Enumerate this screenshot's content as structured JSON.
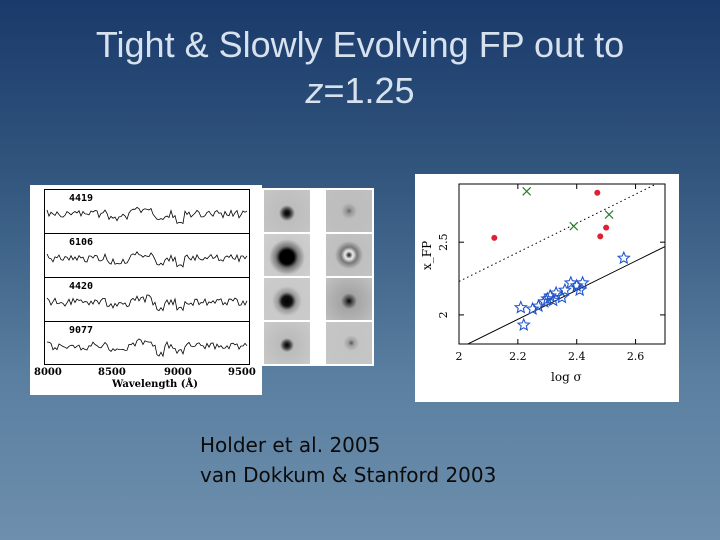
{
  "title": {
    "line1": "Tight & Slowly Evolving FP out to",
    "line2_var": "z",
    "line2_rest": "=1.25"
  },
  "spectra": {
    "ids": [
      "4419",
      "6106",
      "4420",
      "9077"
    ],
    "x_ticks": [
      "8000",
      "8500",
      "9000",
      "9500"
    ],
    "xlabel": "Wavelength (Å)"
  },
  "chart_data": {
    "type": "scatter",
    "title": "",
    "xlabel": "log σ",
    "ylabel": "x_FP",
    "xlim": [
      2.0,
      2.7
    ],
    "ylim": [
      1.8,
      2.9
    ],
    "x_ticks": [
      "2",
      "2.2",
      "2.4",
      "2.6"
    ],
    "y_ticks": [
      "2",
      "2.5"
    ],
    "series": [
      {
        "marker": "star",
        "color": "#2255cc",
        "points": [
          [
            2.22,
            1.93
          ],
          [
            2.21,
            2.05
          ],
          [
            2.25,
            2.04
          ],
          [
            2.27,
            2.06
          ],
          [
            2.29,
            2.09
          ],
          [
            2.3,
            2.11
          ],
          [
            2.31,
            2.13
          ],
          [
            2.32,
            2.1
          ],
          [
            2.33,
            2.15
          ],
          [
            2.35,
            2.12
          ],
          [
            2.36,
            2.17
          ],
          [
            2.38,
            2.22
          ],
          [
            2.4,
            2.2
          ],
          [
            2.41,
            2.17
          ],
          [
            2.42,
            2.22
          ],
          [
            2.56,
            2.39
          ]
        ]
      },
      {
        "marker": "dot",
        "color": "#dd2233",
        "points": [
          [
            2.12,
            2.53
          ],
          [
            2.47,
            2.84
          ],
          [
            2.48,
            2.54
          ],
          [
            2.5,
            2.6
          ]
        ]
      },
      {
        "marker": "x",
        "color": "#2e7d32",
        "points": [
          [
            2.23,
            2.85
          ],
          [
            2.39,
            2.61
          ],
          [
            2.51,
            2.69
          ]
        ]
      }
    ],
    "lines": [
      {
        "style": "solid",
        "x": [
          2.0,
          2.7
        ],
        "y": [
          1.77,
          2.47
        ]
      },
      {
        "style": "dotted",
        "x": [
          2.0,
          2.7
        ],
        "y": [
          2.23,
          2.93
        ]
      }
    ]
  },
  "citation": {
    "line1": "Holder et al. 2005",
    "line2": "van Dokkum & Stanford 2003"
  }
}
